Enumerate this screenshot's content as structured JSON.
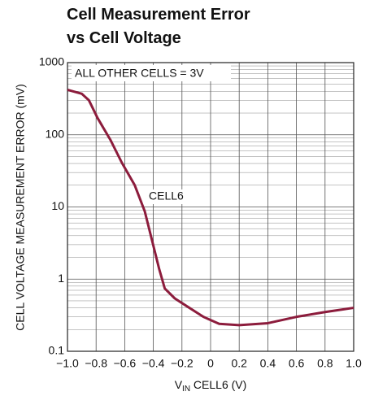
{
  "chart_data": {
    "type": "line",
    "title_lines": [
      "Cell Measurement Error",
      "vs Cell Voltage"
    ],
    "ylabel": "CELL VOLTAGE MEASUREMENT ERROR (mV)",
    "xlabel": {
      "main": "V",
      "sub": "IN",
      "rest": " CELL6 (V)"
    },
    "annotations": [
      "ALL OTHER CELLS = 3V",
      "CELL6"
    ],
    "log_y": true,
    "grid": true,
    "minor_grid": true,
    "xlim": [
      -1,
      1
    ],
    "xticks": [
      {
        "value": -1,
        "label": "−1.0"
      },
      {
        "value": -0.8,
        "label": "−0.8"
      },
      {
        "value": -0.6,
        "label": "−0.6"
      },
      {
        "value": -0.4,
        "label": "−0.4"
      },
      {
        "value": -0.2,
        "label": "−0.2"
      },
      0,
      0.2,
      0.4,
      0.6,
      0.8,
      {
        "value": 1,
        "label": "1.0"
      }
    ],
    "ylim": [
      0.1,
      1000
    ],
    "yticks": [
      0.1,
      1,
      10,
      100,
      1000
    ],
    "series": [
      {
        "name": "CELL6",
        "color": "#8c1c3c",
        "x": [
          -1.0,
          -0.9,
          -0.85,
          -0.79,
          -0.7,
          -0.62,
          -0.53,
          -0.46,
          -0.41,
          -0.36,
          -0.32,
          -0.25,
          -0.165,
          -0.05,
          0.06,
          0.2,
          0.4,
          0.6,
          0.8,
          1.0
        ],
        "values": [
          420,
          370,
          300,
          171,
          85,
          41,
          20,
          8.7,
          3.5,
          1.4,
          0.74,
          0.54,
          0.42,
          0.3,
          0.24,
          0.23,
          0.245,
          0.3,
          0.35,
          0.4
        ]
      }
    ]
  }
}
